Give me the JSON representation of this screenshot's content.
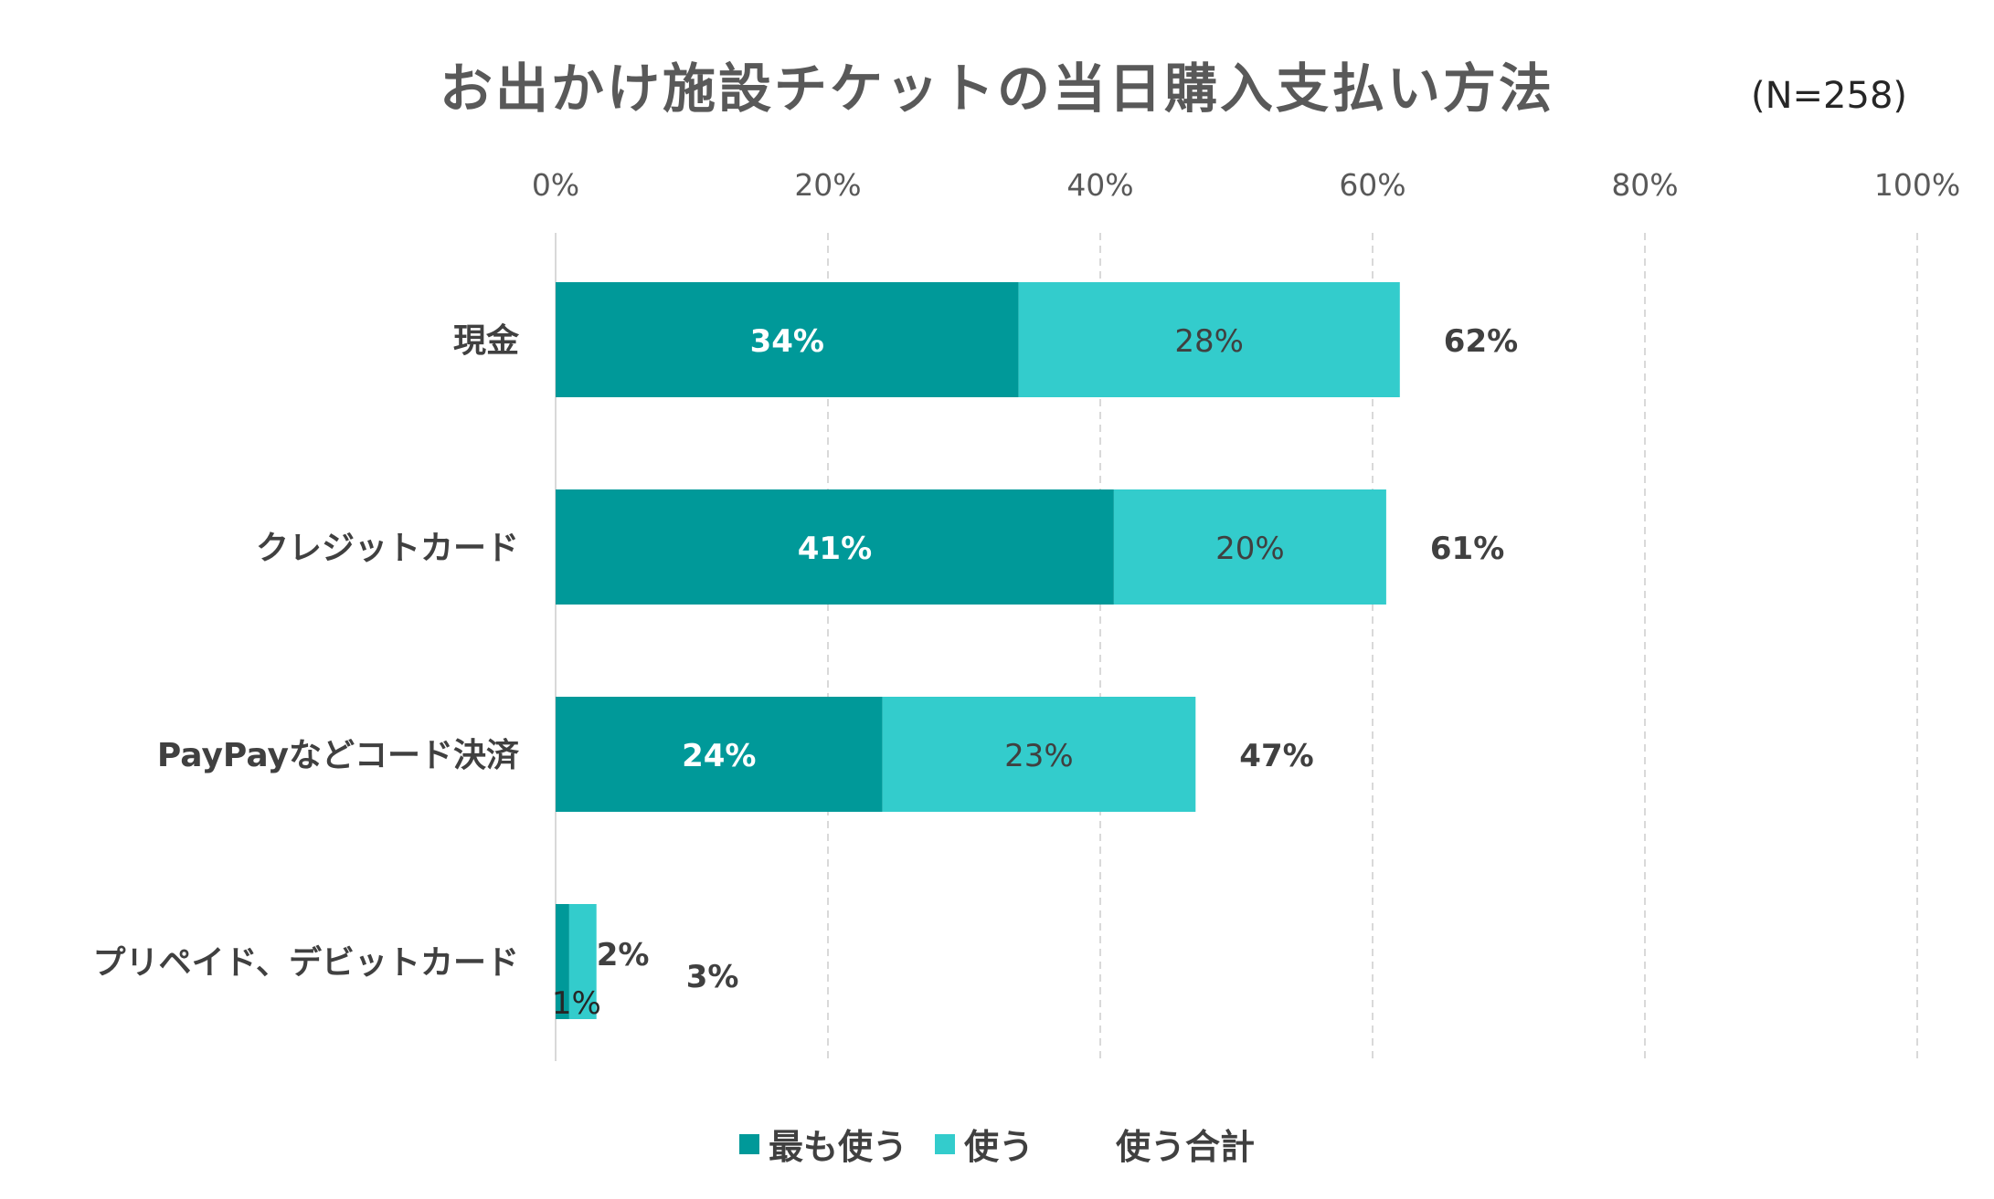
{
  "chart_data": {
    "type": "bar",
    "orientation": "horizontal",
    "stacked": true,
    "title": "お出かけ施設チケットの当日購入支払い方法",
    "annotation": "(N=258)",
    "categories": [
      "現金",
      "クレジットカード",
      "PayPayなどコード決済",
      "プリペイド、デビットカード"
    ],
    "series": [
      {
        "name": "最も使う",
        "values": [
          34,
          41,
          24,
          1
        ],
        "labels": [
          "34%",
          "41%",
          "24%",
          "1%"
        ]
      },
      {
        "name": "使う",
        "values": [
          28,
          20,
          23,
          2
        ],
        "labels": [
          "28%",
          "20%",
          "23%",
          "2%"
        ]
      }
    ],
    "totals": {
      "name": "使う合計",
      "values": [
        62,
        61,
        47,
        3
      ],
      "labels": [
        "62%",
        "61%",
        "47%",
        "3%"
      ]
    },
    "x_ticks": [
      "0%",
      "20%",
      "40%",
      "60%",
      "80%",
      "100%"
    ],
    "xlim": [
      0,
      100
    ],
    "grid": "vertical dashed",
    "legend_position": "bottom"
  },
  "colors": {
    "series1": "#009999",
    "series2": "#33CCCC",
    "title": "#595959",
    "text_dark": "#404040",
    "axis_text": "#595959",
    "grid": "#D9D9D9"
  }
}
